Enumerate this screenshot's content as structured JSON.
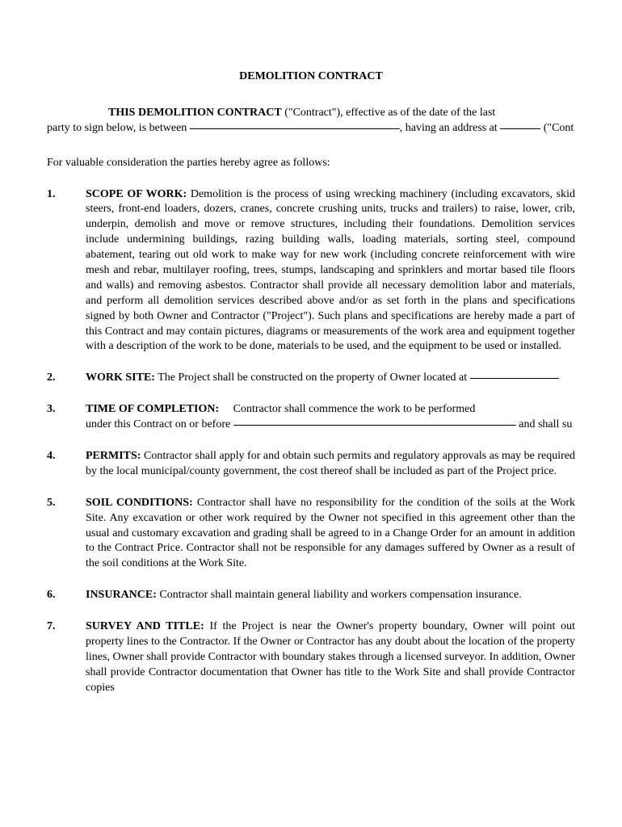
{
  "title": "DEMOLITION CONTRACT",
  "intro": {
    "lead": "THIS DEMOLITION CONTRACT",
    "after_lead": " (\"Contract\"), effective as of the date of the last",
    "line2_a": "party to sign below, is between ",
    "line2_b": ", having an address at ",
    "line2_c": " (\"Cont"
  },
  "consideration": "For valuable consideration the parties hereby agree as follows:",
  "sections": [
    {
      "num": "1.",
      "heading": "SCOPE OF WORK:",
      "body": "   Demolition is the process of using wrecking machinery (including excavators, skid steers, front-end loaders, dozers, cranes, concrete crushing units, trucks and trailers) to raise, lower, crib, underpin, demolish and move or remove structures, including their foundations. Demolition services include undermining buildings, razing building walls, loading materials, sorting steel, compound abatement, tearing out old work to make way for new work (including concrete reinforcement with wire mesh and rebar, multilayer roofing, trees, stumps, landscaping and sprinklers and mortar based tile floors and walls) and removing asbestos. Contractor shall provide all necessary demolition labor and materials, and perform all demolition services described above and/or as set forth in the plans and specifications signed by both Owner and Contractor (\"Project\"). Such plans and specifications are hereby made a part of this Contract and may contain pictures, diagrams or measurements of the work area and equipment together with a description of the work to be done, materials to be used, and the equipment to be used or installed."
    },
    {
      "num": "2.",
      "heading": "WORK SITE:",
      "body": "   The Project shall be constructed on the property of Owner located at "
    },
    {
      "num": "3.",
      "heading": "TIME OF COMPLETION:",
      "body_a": "     Contractor shall commence the work to be performed under this Contract on or before ",
      "body_b": " and shall su"
    },
    {
      "num": "4.",
      "heading": "PERMITS:",
      "body": "     Contractor shall apply for and obtain such permits and regulatory approvals as may be required by the local municipal/county government, the cost thereof shall be included as part of the Project price."
    },
    {
      "num": "5.",
      "heading": "SOIL CONDITIONS:",
      "body": "   Contractor shall have no responsibility for the condition of the soils at the Work Site.    Any excavation or other work required by the Owner not specified in this agreement other than the usual and customary excavation and grading shall be agreed to in a Change Order for an amount in addition to the Contract Price.  Contractor shall not be responsible for any damages suffered by Owner as a result of the soil conditions at the Work Site."
    },
    {
      "num": "6.",
      "heading": "INSURANCE:",
      "body": "   Contractor shall maintain general liability and workers compensation insurance."
    },
    {
      "num": "7.",
      "heading": "SURVEY AND TITLE:",
      "body": "   If the Project is near the Owner's property boundary, Owner will point out property lines to the Contractor. If the Owner or Contractor has any doubt about the location of the property lines, Owner shall provide Contractor with boundary stakes through a licensed surveyor. In addition, Owner shall provide Contractor documentation that Owner has title to the Work Site and shall provide Contractor copies"
    }
  ]
}
